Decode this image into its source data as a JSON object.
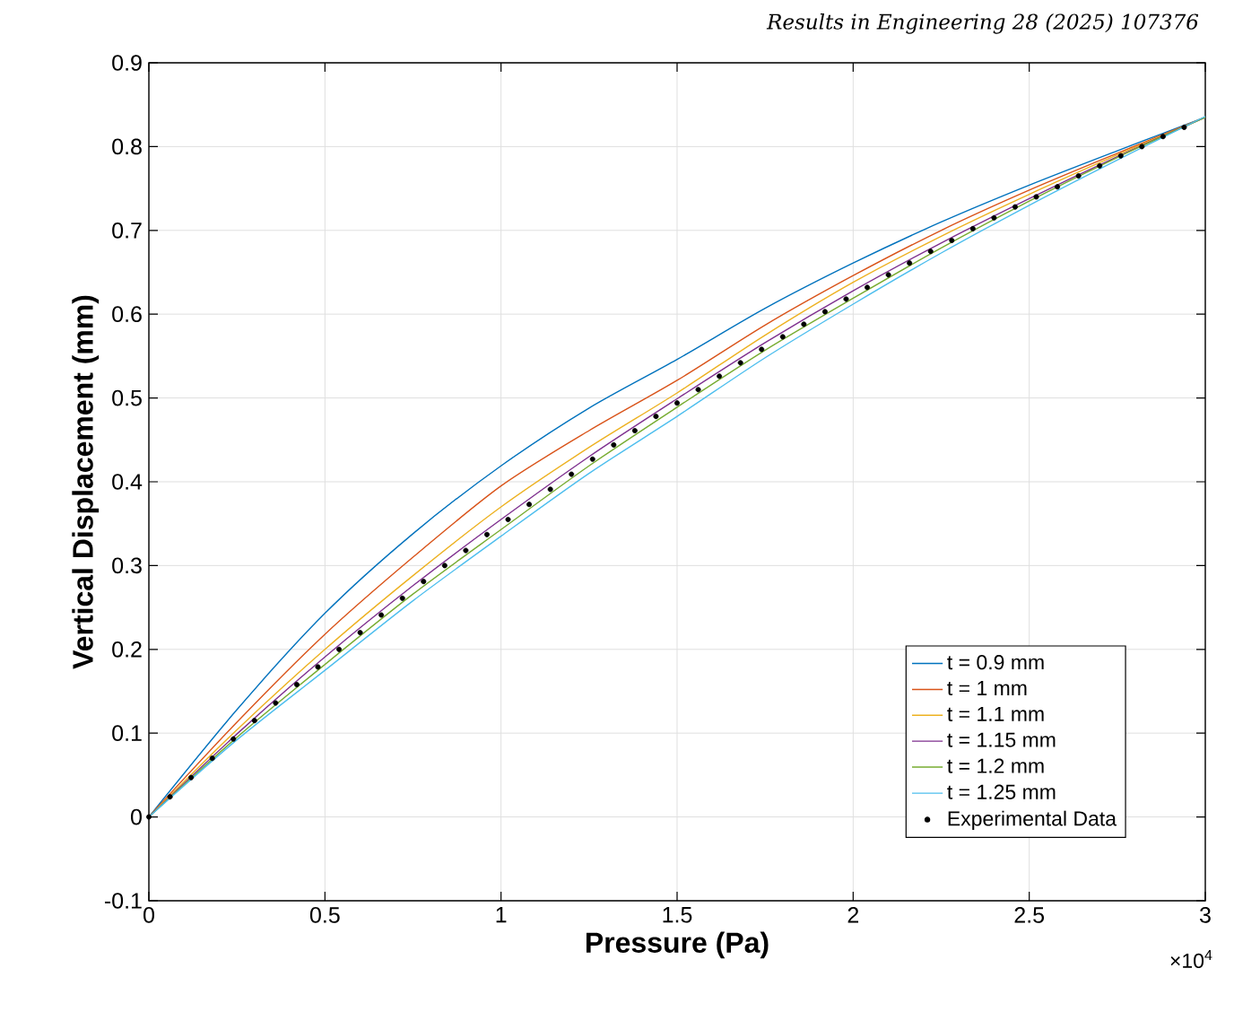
{
  "chart_data": {
    "type": "line",
    "annotations": [
      "Results in Engineering 28 (2025) 107376",
      "×10$^{4}$"
    ],
    "xlabel": "Pressure (Pa)",
    "ylabel": "Vertical Displacement (mm)",
    "xlim": [
      0,
      3
    ],
    "ylim": [
      -0.1,
      0.9
    ],
    "xticks": [
      0,
      0.5,
      1,
      1.5,
      2,
      2.5,
      3
    ],
    "yticks": [
      -0.1,
      0,
      0.1,
      0.2,
      0.3,
      0.4,
      0.5,
      0.6,
      0.7,
      0.8,
      0.9
    ],
    "grid": true,
    "legend": "bottom right",
    "x": [
      0,
      0.25,
      0.5,
      0.75,
      1,
      1.25,
      1.5,
      1.75,
      2,
      2.25,
      2.5,
      2.75,
      3
    ],
    "series": [
      {
        "name": "t = 0.9 mm",
        "color": "#0072bd",
        "values": [
          0,
          0.128,
          0.243,
          0.338,
          0.419,
          0.488,
          0.546,
          0.607,
          0.661,
          0.71,
          0.754,
          0.795,
          0.835
        ]
      },
      {
        "name": "t = 1 mm",
        "color": "#d95319",
        "values": [
          0,
          0.113,
          0.218,
          0.31,
          0.395,
          0.461,
          0.521,
          0.587,
          0.646,
          0.7,
          0.748,
          0.792,
          0.835
        ]
      },
      {
        "name": "t = 1.1 mm",
        "color": "#edb120",
        "values": [
          0,
          0.104,
          0.2,
          0.288,
          0.37,
          0.441,
          0.506,
          0.575,
          0.638,
          0.693,
          0.743,
          0.79,
          0.835
        ]
      },
      {
        "name": "t = 1.15 mm",
        "color": "#7e2f8e",
        "values": [
          0,
          0.099,
          0.191,
          0.276,
          0.355,
          0.43,
          0.499,
          0.566,
          0.628,
          0.685,
          0.738,
          0.788,
          0.835
        ]
      },
      {
        "name": "t = 1.2 mm",
        "color": "#77ac30",
        "values": [
          0,
          0.095,
          0.182,
          0.266,
          0.343,
          0.419,
          0.489,
          0.557,
          0.619,
          0.679,
          0.735,
          0.787,
          0.835
        ]
      },
      {
        "name": "t = 1.25 mm",
        "color": "#4dbeee",
        "values": [
          0,
          0.092,
          0.175,
          0.258,
          0.335,
          0.41,
          0.478,
          0.548,
          0.612,
          0.673,
          0.73,
          0.784,
          0.836
        ]
      },
      {
        "name": "Experimental Data",
        "type": "scatter",
        "marker": "circle",
        "color": "#000000",
        "x": [
          0,
          0.06,
          0.12,
          0.18,
          0.24,
          0.3,
          0.36,
          0.42,
          0.48,
          0.54,
          0.6,
          0.66,
          0.72,
          0.78,
          0.84,
          0.9,
          0.96,
          1.02,
          1.08,
          1.14,
          1.2,
          1.26,
          1.32,
          1.38,
          1.44,
          1.5,
          1.56,
          1.62,
          1.68,
          1.74,
          1.8,
          1.86,
          1.92,
          1.98,
          2.04,
          2.1,
          2.16,
          2.22,
          2.28,
          2.34,
          2.4,
          2.46,
          2.52,
          2.58,
          2.64,
          2.7,
          2.76,
          2.82,
          2.88,
          2.94
        ],
        "values": [
          0,
          0.024,
          0.047,
          0.07,
          0.093,
          0.115,
          0.136,
          0.158,
          0.179,
          0.2,
          0.22,
          0.241,
          0.261,
          0.281,
          0.3,
          0.318,
          0.337,
          0.355,
          0.373,
          0.391,
          0.409,
          0.427,
          0.444,
          0.461,
          0.478,
          0.494,
          0.51,
          0.526,
          0.542,
          0.558,
          0.573,
          0.588,
          0.603,
          0.618,
          0.632,
          0.647,
          0.661,
          0.675,
          0.688,
          0.702,
          0.715,
          0.728,
          0.74,
          0.752,
          0.765,
          0.777,
          0.789,
          0.8,
          0.812,
          0.823
        ]
      }
    ]
  }
}
